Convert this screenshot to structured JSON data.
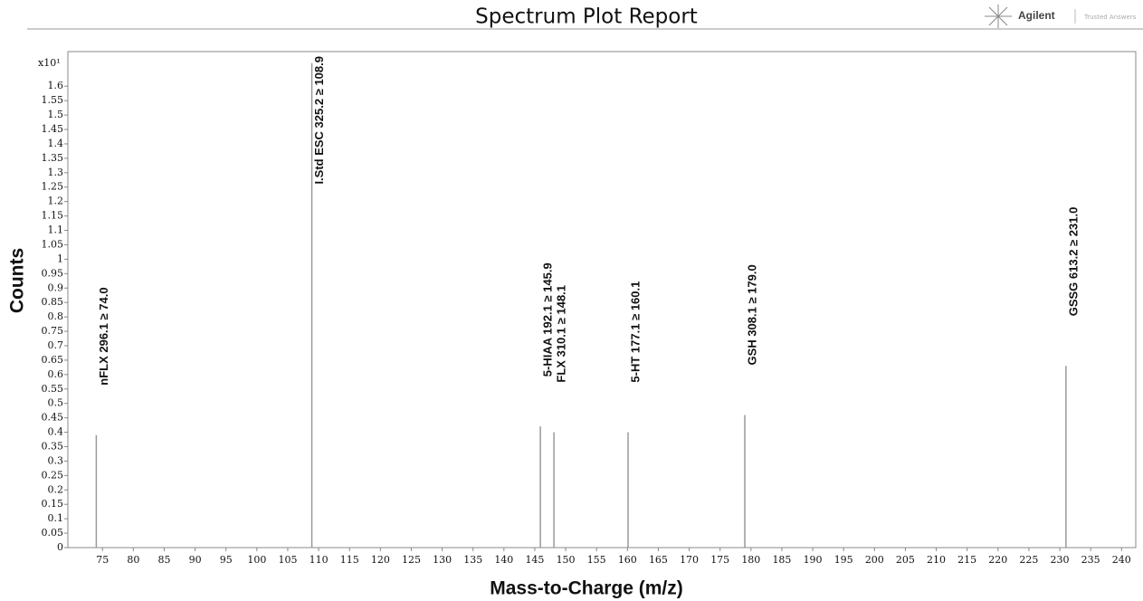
{
  "header": {
    "title": "Spectrum Plot Report",
    "brand": "Agilent",
    "tagline": "Trusted Answers"
  },
  "chart_data": {
    "type": "stick",
    "y_multiplier": "x10¹",
    "x_label": "Mass-to-Charge (m/z)",
    "y_label": "Counts",
    "x": [
      74.0,
      108.9,
      145.9,
      148.1,
      160.1,
      179.0,
      231.0
    ],
    "values": [
      0.39,
      1.68,
      0.42,
      0.4,
      0.4,
      0.46,
      0.63
    ],
    "labels": [
      "nFLX 296.1 ≥ 74.0",
      "I.Std ESC 325.2 ≥ 108.9",
      "5-HIAA 192.1 ≥ 145.9",
      "FLX 310.1 ≥ 148.1",
      "5-HT 177.1 ≥ 160.1",
      "GSH 308.1 ≥ 179.0",
      "GSSG 613.2 ≥ 231.0"
    ],
    "color": "#999999",
    "xlim": [
      69.4,
      242.3
    ],
    "ylim": [
      0,
      1.72
    ],
    "xticks": [
      75,
      80,
      85,
      90,
      95,
      100,
      105,
      110,
      115,
      120,
      125,
      130,
      135,
      140,
      145,
      150,
      155,
      160,
      165,
      170,
      175,
      180,
      185,
      190,
      195,
      200,
      205,
      210,
      215,
      220,
      225,
      230,
      235,
      240
    ],
    "yticks": [
      0,
      0.05,
      0.1,
      0.15,
      0.2,
      0.25,
      0.3,
      0.35,
      0.4,
      0.45,
      0.5,
      0.55,
      0.6,
      0.65,
      0.7,
      0.75,
      0.8,
      0.85,
      0.9,
      0.95,
      1,
      1.05,
      1.1,
      1.15,
      1.2,
      1.25,
      1.3,
      1.35,
      1.4,
      1.45,
      1.5,
      1.55,
      1.6
    ],
    "grid": false
  }
}
